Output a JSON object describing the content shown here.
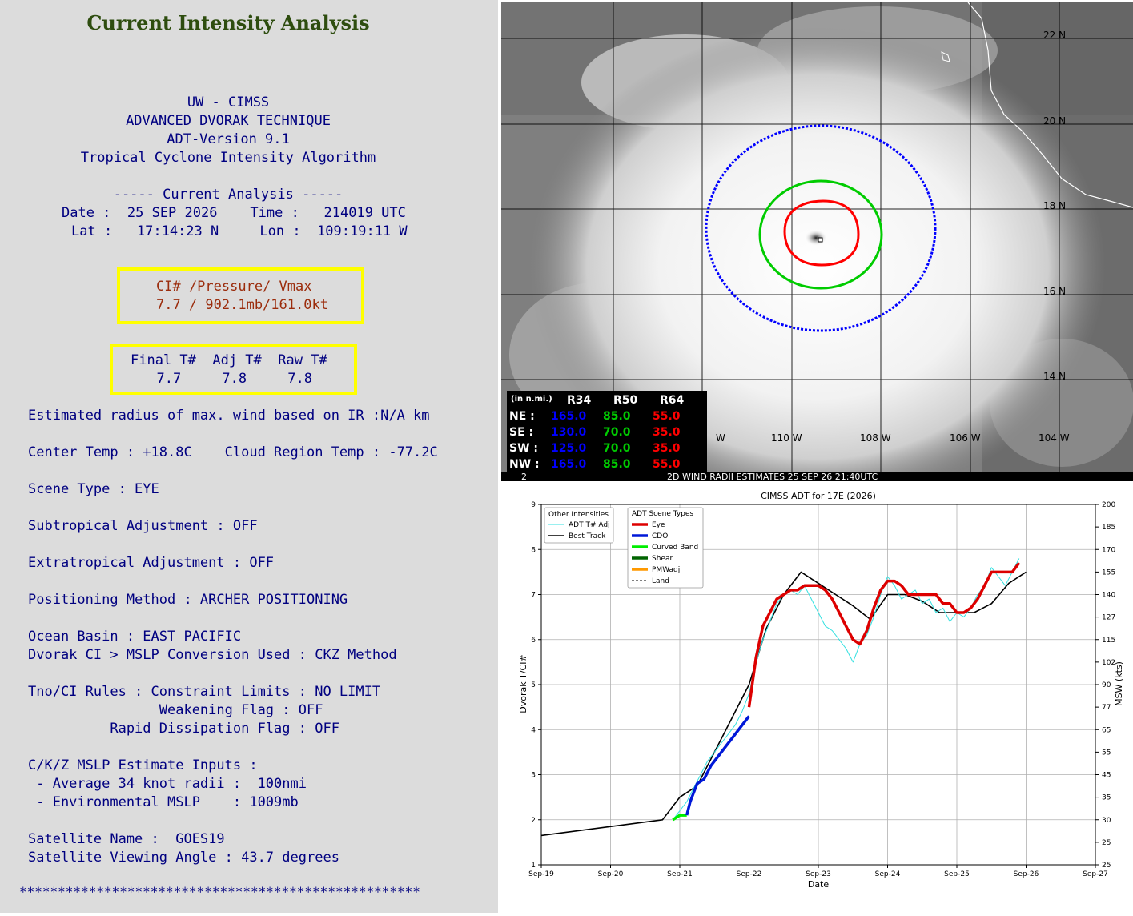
{
  "left": {
    "title": "Current Intensity Analysis",
    "header": [
      "UW - CIMSS",
      "ADVANCED DVORAK TECHNIQUE",
      "ADT-Version 9.1",
      "Tropical Cyclone Intensity Algorithm"
    ],
    "current_heading": "----- Current Analysis -----",
    "date_line": "Date :  25 SEP 2026    Time :   214019 UTC",
    "latlon_line": "Lat :   17:14:23 N     Lon :  109:19:11 W",
    "ci_label": "CI# /Pressure/ Vmax",
    "ci_value": "7.7 / 902.1mb/161.0kt",
    "t_labels": "Final T#  Adj T#  Raw T#",
    "t_values": "  7.7     7.8     7.8",
    "lines": [
      "Estimated radius of max. wind based on IR :N/A km",
      "Center Temp : +18.8C    Cloud Region Temp : -77.2C",
      "Scene Type : EYE",
      "Subtropical Adjustment : OFF",
      "Extratropical Adjustment : OFF",
      "Positioning Method : ARCHER POSITIONING",
      "Ocean Basin : EAST PACIFIC",
      "Dvorak CI > MSLP Conversion Used : CKZ Method",
      "Tno/CI Rules : Constraint Limits : NO LIMIT",
      "                Weakening Flag : OFF",
      "          Rapid Dissipation Flag : OFF",
      "C/K/Z MSLP Estimate Inputs :",
      " - Average 34 knot radii :  100nmi",
      " - Environmental MSLP    : 1009mb",
      "Satellite Name :  GOES19",
      "Satellite Viewing Angle : 43.7 degrees"
    ],
    "stars": "****************************************************"
  },
  "satellite": {
    "lat_labels": [
      "22 N",
      "20 N",
      "18 N",
      "16 N",
      "14 N"
    ],
    "lon_labels": [
      "W",
      "110 W",
      "108 W",
      "106 W",
      "104 W"
    ],
    "radii_header": [
      "(in n.mi.)",
      "R34",
      "R50",
      "R64"
    ],
    "radii_rows": [
      {
        "q": "NE :",
        "r34": "165.0",
        "r50": "85.0",
        "r64": "55.0"
      },
      {
        "q": "SE :",
        "r34": "130.0",
        "r50": "70.0",
        "r64": "35.0"
      },
      {
        "q": "SW :",
        "r34": "125.0",
        "r50": "70.0",
        "r64": "35.0"
      },
      {
        "q": "NW :",
        "r34": "165.0",
        "r50": "85.0",
        "r64": "55.0"
      }
    ],
    "footer_num": "2",
    "footer": "2D WIND RADII ESTIMATES 25 SEP 26 21:40UTC",
    "colors": {
      "r34": "#0000ff",
      "r50": "#00cc00",
      "r64": "#ff0000"
    }
  },
  "chart_data": {
    "type": "line",
    "title": "CIMSS ADT for 17E (2026)",
    "xlabel": "Date",
    "ylabel": "Dvorak T/CI#",
    "ylabel_right": "MSW (kts)",
    "x_ticks": [
      "Sep-19",
      "Sep-20",
      "Sep-21",
      "Sep-22",
      "Sep-23",
      "Sep-24",
      "Sep-25",
      "Sep-26",
      "Sep-27"
    ],
    "xlim": [
      19,
      27
    ],
    "ylim": [
      1,
      9
    ],
    "y_ticks": [
      1,
      2,
      3,
      4,
      5,
      6,
      7,
      8,
      9
    ],
    "right_ticks": [
      {
        "t": 1,
        "l": "25"
      },
      {
        "t": 1.5,
        "l": "25"
      },
      {
        "t": 2,
        "l": "30"
      },
      {
        "t": 2.5,
        "l": "35"
      },
      {
        "t": 3,
        "l": "45"
      },
      {
        "t": 3.5,
        "l": "55"
      },
      {
        "t": 4,
        "l": "65"
      },
      {
        "t": 4.5,
        "l": "77"
      },
      {
        "t": 5,
        "l": "90"
      },
      {
        "t": 5.5,
        "l": "102"
      },
      {
        "t": 6,
        "l": "115"
      },
      {
        "t": 6.5,
        "l": "127"
      },
      {
        "t": 7,
        "l": "140"
      },
      {
        "t": 7.5,
        "l": "155"
      },
      {
        "t": 8,
        "l": "170"
      },
      {
        "t": 8.5,
        "l": "185"
      },
      {
        "t": 9,
        "l": "200"
      }
    ],
    "legend_other": {
      "title": "Other Intensities",
      "items": [
        "ADT T# Adj",
        "Best Track"
      ]
    },
    "legend_scene": {
      "title": "ADT Scene Types",
      "items": [
        "Eye",
        "CDO",
        "Curved Band",
        "Shear",
        "PMWadj",
        "Land"
      ]
    },
    "series": [
      {
        "name": "Best Track",
        "color": "#000000",
        "x": [
          19.0,
          20.75,
          21.0,
          21.25,
          21.5,
          21.75,
          22.0,
          22.25,
          22.5,
          22.75,
          23.0,
          23.25,
          23.5,
          23.75,
          24.0,
          24.25,
          24.5,
          24.75,
          25.0,
          25.25,
          25.5,
          25.75,
          26.0
        ],
        "y": [
          1.65,
          2.0,
          2.5,
          2.75,
          3.5,
          4.25,
          5.0,
          6.25,
          7.0,
          7.5,
          7.25,
          7.0,
          6.75,
          6.45,
          7.0,
          7.0,
          6.85,
          6.6,
          6.6,
          6.6,
          6.8,
          7.25,
          7.5
        ]
      },
      {
        "name": "ADT T# Adj",
        "color": "#33e0e0",
        "x": [
          20.9,
          21.0,
          21.1,
          21.2,
          21.3,
          21.4,
          21.5,
          21.6,
          21.7,
          21.8,
          21.9,
          22.0,
          22.1,
          22.2,
          22.3,
          22.4,
          22.5,
          22.6,
          22.7,
          22.8,
          22.9,
          23.0,
          23.1,
          23.2,
          23.3,
          23.4,
          23.5,
          23.6,
          23.7,
          23.8,
          23.9,
          24.0,
          24.1,
          24.2,
          24.3,
          24.4,
          24.5,
          24.6,
          24.7,
          24.8,
          24.9,
          25.0,
          25.1,
          25.2,
          25.3,
          25.4,
          25.5,
          25.6,
          25.7,
          25.8,
          25.9
        ],
        "y": [
          2.0,
          2.2,
          2.4,
          2.7,
          3.0,
          3.3,
          3.5,
          3.7,
          3.9,
          4.1,
          4.4,
          4.8,
          5.5,
          6.0,
          6.4,
          6.8,
          7.0,
          7.1,
          7.0,
          7.2,
          6.9,
          6.6,
          6.3,
          6.2,
          6.0,
          5.8,
          5.5,
          5.9,
          6.1,
          6.5,
          7.0,
          7.4,
          7.2,
          6.9,
          7.0,
          7.1,
          6.8,
          6.9,
          6.6,
          6.7,
          6.4,
          6.6,
          6.5,
          6.7,
          7.0,
          7.2,
          7.6,
          7.4,
          7.2,
          7.5,
          7.8
        ]
      },
      {
        "name": "Curved Band",
        "color": "#00ee00",
        "x": [
          20.9,
          21.0,
          21.1
        ],
        "y": [
          2.0,
          2.1,
          2.1
        ]
      },
      {
        "name": "CDO",
        "color": "#0018d8",
        "x": [
          21.1,
          21.15,
          21.25,
          21.35,
          21.45,
          21.55,
          21.65,
          21.75,
          21.85,
          21.95,
          22.0
        ],
        "y": [
          2.1,
          2.4,
          2.8,
          2.9,
          3.2,
          3.4,
          3.6,
          3.8,
          4.0,
          4.2,
          4.3
        ]
      },
      {
        "name": "Eye",
        "color": "#dd0000",
        "x": [
          22.0,
          22.1,
          22.2,
          22.3,
          22.4,
          22.5,
          22.6,
          22.7,
          22.8,
          22.9,
          23.0,
          23.1,
          23.2,
          23.3,
          23.4,
          23.5,
          23.6,
          23.7,
          23.8,
          23.9,
          24.0,
          24.1,
          24.2,
          24.3,
          24.4,
          24.5,
          24.6,
          24.7,
          24.8,
          24.9,
          25.0,
          25.1,
          25.2,
          25.3,
          25.4,
          25.5,
          25.6,
          25.7,
          25.8,
          25.9
        ],
        "y": [
          4.5,
          5.6,
          6.3,
          6.6,
          6.9,
          7.0,
          7.1,
          7.1,
          7.2,
          7.2,
          7.2,
          7.1,
          6.9,
          6.6,
          6.3,
          6.0,
          5.9,
          6.2,
          6.7,
          7.1,
          7.3,
          7.3,
          7.2,
          7.0,
          7.0,
          7.0,
          7.0,
          7.0,
          6.8,
          6.8,
          6.6,
          6.6,
          6.7,
          6.9,
          7.2,
          7.5,
          7.5,
          7.5,
          7.5,
          7.7
        ]
      }
    ]
  }
}
